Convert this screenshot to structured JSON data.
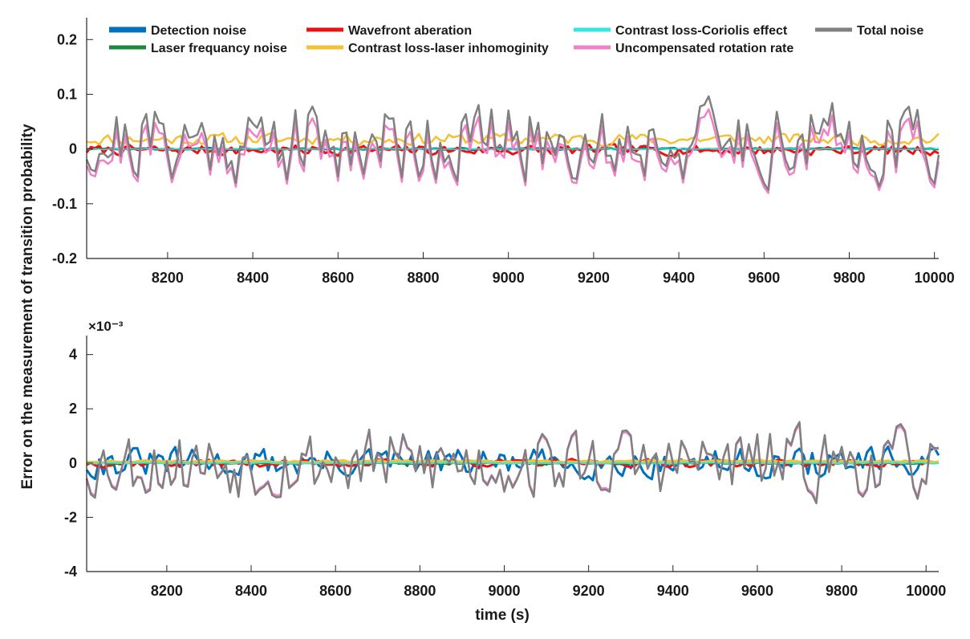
{
  "chart_data": [
    {
      "type": "line",
      "panel": "top",
      "xlim": [
        8010,
        10010
      ],
      "ylim": [
        -0.2,
        0.24
      ],
      "xticks": [
        8200,
        8400,
        8600,
        8800,
        9000,
        9200,
        9400,
        9600,
        9800,
        10000
      ],
      "yticks": [
        -0.2,
        -0.1,
        0,
        0.1,
        0.2
      ],
      "ytick_labels": [
        "-0.2",
        "-0.1",
        "0",
        "0.1",
        "0.2"
      ],
      "xtick_labels": [
        "8200",
        "8400",
        "8600",
        "8800",
        "9000",
        "9200",
        "9400",
        "9600",
        "9800",
        "10000"
      ],
      "exponent": "",
      "sample_step": 10,
      "series": [
        {
          "name": "Detection noise",
          "color": "#0072bd",
          "baseline": 0.0,
          "amplitude": 0.002,
          "seed": 3,
          "width": 3
        },
        {
          "name": "Laser frequancy noise",
          "color": "#1a8a3a",
          "baseline": 0.0,
          "amplitude": 0.0005,
          "seed": 5,
          "width": 2
        },
        {
          "name": "Wavefront aberation",
          "color": "#ee1111",
          "baseline": -0.002,
          "amplitude": 0.012,
          "seed": 7,
          "width": 3
        },
        {
          "name": "Contrast loss-laser inhomoginity",
          "color": "#f5c033",
          "baseline": 0.018,
          "amplitude": 0.014,
          "seed": 11,
          "width": 2.5
        },
        {
          "name": "Contrast loss-Coriolis effect",
          "color": "#33e8e0",
          "baseline": 0.0,
          "amplitude": 0.0008,
          "seed": 13,
          "width": 1.5
        },
        {
          "name": "Uncompensated rotation rate",
          "color": "#f080c8",
          "baseline": 0.0,
          "amplitude": 0.085,
          "seed": 21,
          "width": 2.5
        },
        {
          "name": "Total noise",
          "color": "#808080",
          "baseline": 0.015,
          "amplitude": 0.095,
          "seed": 21,
          "width": 2.5
        }
      ],
      "legend": [
        {
          "label": "Detection noise",
          "color": "#0072bd"
        },
        {
          "label": "Wavefront aberation",
          "color": "#ee1111"
        },
        {
          "label": "Contrast loss-Coriolis effect",
          "color": "#33e8e0"
        },
        {
          "label": "Total noise",
          "color": "#808080"
        },
        {
          "label": "Laser frequancy noise",
          "color": "#1a8a3a"
        },
        {
          "label": "Contrast loss-laser inhomoginity",
          "color": "#f5c033"
        },
        {
          "label": "Uncompensated rotation rate",
          "color": "#f080c8"
        }
      ],
      "legend_location": "top"
    },
    {
      "type": "line",
      "panel": "bottom",
      "xlim": [
        8010,
        10030
      ],
      "ylim": [
        -4,
        4.7
      ],
      "xticks": [
        8200,
        8400,
        8600,
        8800,
        9000,
        9200,
        9400,
        9600,
        9800,
        10000
      ],
      "yticks": [
        -4,
        -2,
        0,
        2,
        4
      ],
      "ytick_labels": [
        "-4",
        "-2",
        "0",
        "2",
        "4"
      ],
      "xtick_labels": [
        "8200",
        "8400",
        "8600",
        "8800",
        "9000",
        "9200",
        "9400",
        "9600",
        "9800",
        "10000"
      ],
      "exponent": "×10⁻³",
      "unit_note": "values in units of 1e-3",
      "sample_step": 10,
      "series": [
        {
          "name": "Detection noise",
          "color": "#0072bd",
          "baseline": 0.0,
          "amplitude": 0.7,
          "seed": 31,
          "width": 3
        },
        {
          "name": "Wavefront aberation",
          "color": "#ee1111",
          "baseline": 0.0,
          "amplitude": 0.18,
          "seed": 37,
          "width": 3
        },
        {
          "name": "Laser frequancy noise",
          "color": "#1a8a3a",
          "baseline": 0.0,
          "amplitude": 0.03,
          "seed": 41,
          "width": 3
        },
        {
          "name": "Contrast loss-laser inhomoginity",
          "color": "#f5c033",
          "baseline": 0.05,
          "amplitude": 0.05,
          "seed": 43,
          "width": 4
        },
        {
          "name": "Contrast loss-Coriolis effect",
          "color": "#33e8e0",
          "baseline": 0.0,
          "amplitude": 0.03,
          "seed": 47,
          "width": 2
        },
        {
          "name": "Uncompensated rotation rate",
          "color": "#f080c8",
          "baseline": 0.0,
          "amplitude": 1.6,
          "seed": 53,
          "width": 2.5
        },
        {
          "name": "Total noise",
          "color": "#808080",
          "baseline": 0.0,
          "amplitude": 1.7,
          "seed": 53,
          "width": 2.5
        }
      ]
    }
  ],
  "figure": {
    "ylabel": "Error on the measurement of transition probability",
    "xlabel": "time (s)"
  }
}
